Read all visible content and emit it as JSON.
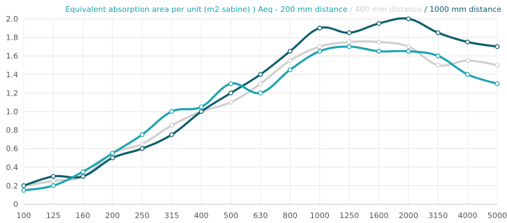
{
  "chart_data": {
    "type": "line",
    "title_parts": [
      {
        "text": "Equivalent absorption area per unit (m2 sabine) ) Aeq - 200 mm distance",
        "color": "#1aa3b2"
      },
      {
        "text": " / 400 mm distance",
        "color": "#cfcfcf"
      },
      {
        "text": " / 1000 mm distance",
        "color": "#0b5d6b"
      }
    ],
    "categories": [
      "100",
      "125",
      "160",
      "200",
      "250",
      "315",
      "400",
      "500",
      "630",
      "800",
      "1000",
      "1250",
      "1600",
      "2000",
      "3150",
      "4000",
      "5000"
    ],
    "ylim": [
      0,
      2.0
    ],
    "yticks": [
      "0",
      "0.2",
      "0.4",
      "0.6",
      "0.8",
      "1.0",
      "1.2",
      "1.4",
      "1.6",
      "1.8",
      "2.0"
    ],
    "grid": true,
    "series": [
      {
        "name": "400 mm distance",
        "color": "#cfcfcf",
        "values": [
          0.2,
          0.25,
          0.3,
          0.55,
          0.65,
          0.85,
          1.0,
          1.1,
          1.3,
          1.55,
          1.7,
          1.75,
          1.75,
          1.7,
          1.5,
          1.55,
          1.5
        ]
      },
      {
        "name": "1000 mm distance",
        "color": "#0b5d6b",
        "values": [
          0.2,
          0.3,
          0.3,
          0.5,
          0.6,
          0.75,
          1.0,
          1.2,
          1.4,
          1.65,
          1.9,
          1.85,
          1.95,
          2.0,
          1.85,
          1.75,
          1.7
        ]
      },
      {
        "name": "200 mm distance",
        "color": "#1aa3b2",
        "values": [
          0.15,
          0.2,
          0.35,
          0.55,
          0.75,
          1.0,
          1.05,
          1.3,
          1.2,
          1.45,
          1.65,
          1.7,
          1.65,
          1.65,
          1.6,
          1.4,
          1.3
        ]
      }
    ]
  }
}
